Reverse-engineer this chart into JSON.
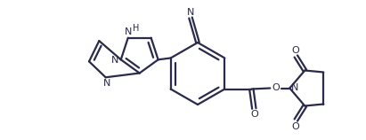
{
  "bg_color": "#ffffff",
  "line_color": "#2a2a4a",
  "line_width": 1.6,
  "figsize": [
    4.11,
    1.58
  ],
  "dpi": 100,
  "xlim": [
    0.0,
    4.11
  ],
  "ylim": [
    0.0,
    1.58
  ]
}
